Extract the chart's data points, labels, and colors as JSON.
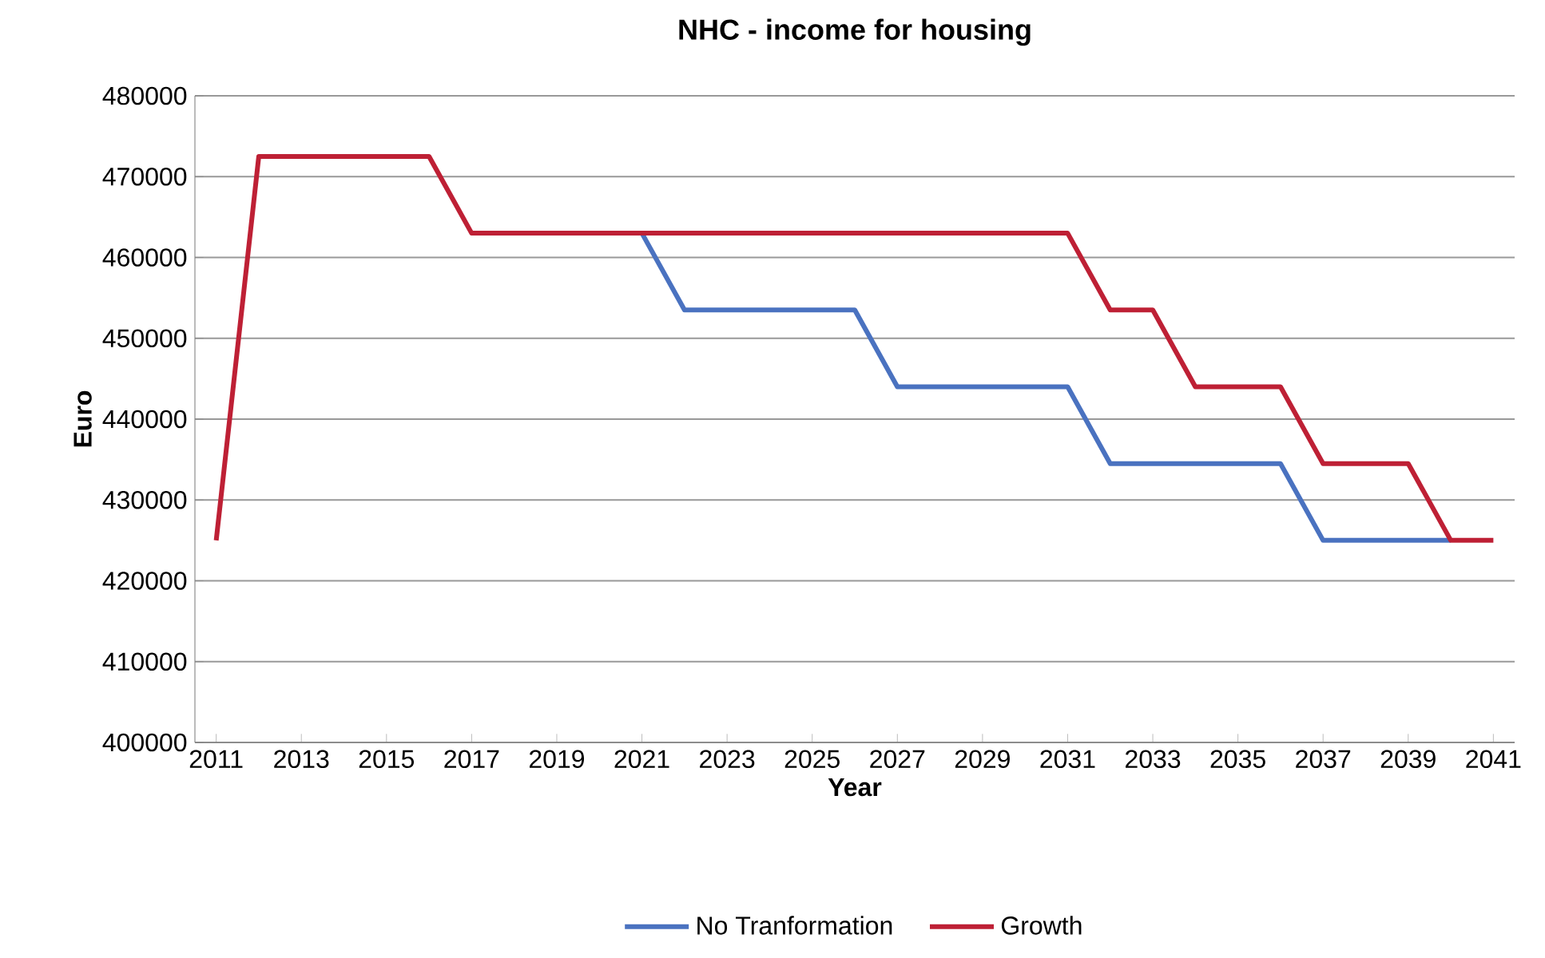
{
  "chart_data": {
    "type": "line",
    "title": "NHC - income for housing",
    "xlabel": "Year",
    "ylabel": "Euro",
    "x": [
      2011,
      2012,
      2013,
      2014,
      2015,
      2016,
      2017,
      2018,
      2019,
      2020,
      2021,
      2022,
      2023,
      2024,
      2025,
      2026,
      2027,
      2028,
      2029,
      2030,
      2031,
      2032,
      2033,
      2034,
      2035,
      2036,
      2037,
      2038,
      2039,
      2040,
      2041
    ],
    "series": [
      {
        "name": "No Tranformation",
        "color": "#4a72c0",
        "values": [
          null,
          null,
          null,
          null,
          null,
          null,
          null,
          null,
          null,
          null,
          463000,
          453500,
          453500,
          453500,
          453500,
          453500,
          444000,
          444000,
          444000,
          444000,
          444000,
          434500,
          434500,
          434500,
          434500,
          434500,
          425000,
          425000,
          425000,
          425000,
          null
        ]
      },
      {
        "name": "Growth",
        "color": "#be2035",
        "values": [
          425000,
          472500,
          472500,
          472500,
          472500,
          472500,
          463000,
          463000,
          463000,
          463000,
          463000,
          463000,
          463000,
          463000,
          463000,
          463000,
          463000,
          463000,
          463000,
          463000,
          463000,
          453500,
          453500,
          444000,
          444000,
          444000,
          434500,
          434500,
          434500,
          425000,
          425000
        ]
      }
    ],
    "xlim": [
      2010.5,
      2041.5
    ],
    "xticks": [
      2011,
      2013,
      2015,
      2017,
      2019,
      2021,
      2023,
      2025,
      2027,
      2029,
      2031,
      2033,
      2035,
      2037,
      2039,
      2041
    ],
    "ylim": [
      400000,
      480000
    ],
    "yticks": [
      400000,
      410000,
      420000,
      430000,
      440000,
      450000,
      460000,
      470000,
      480000
    ],
    "grid": "y",
    "legend": "bottom",
    "marker": "none",
    "line_style": "solid"
  }
}
